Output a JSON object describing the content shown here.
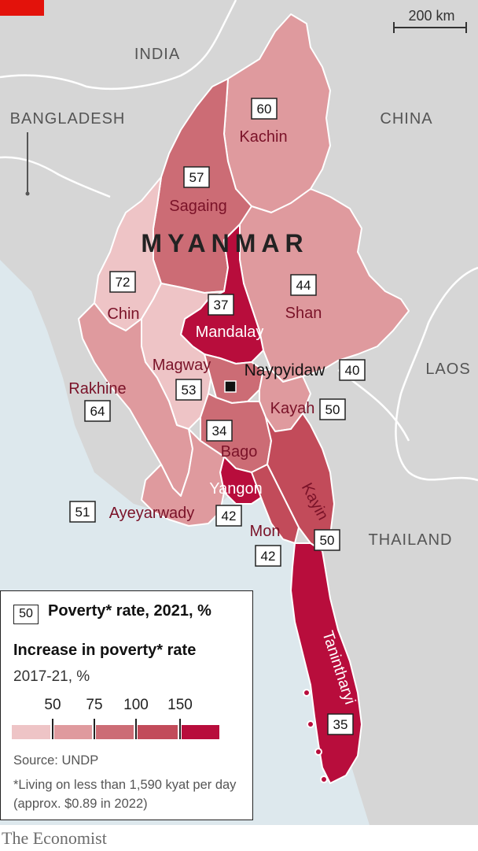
{
  "colors": {
    "sea": "#dde8ed",
    "land": "#d6d6d6",
    "border": "#ffffff",
    "bin1": "#eec4c6",
    "bin2": "#df9a9e",
    "bin3": "#cc6c75",
    "bin4": "#c24b5a",
    "bin5": "#b80d3c",
    "region_label": "#7a1228",
    "country_label": "#555555"
  },
  "scale_label": "200 km",
  "countries": {
    "india": "INDIA",
    "bangladesh": "BANGLADESH",
    "china": "CHINA",
    "laos": "LAOS",
    "thailand": "THAILAND"
  },
  "title": "MYANMAR",
  "capital": "Naypyidaw",
  "regions": [
    {
      "name": "Kachin",
      "poverty_rate": "60",
      "increase_bin": 2
    },
    {
      "name": "Sagaing",
      "poverty_rate": "57",
      "increase_bin": 3
    },
    {
      "name": "Chin",
      "poverty_rate": "72",
      "increase_bin": 1
    },
    {
      "name": "Shan",
      "poverty_rate": "44",
      "increase_bin": 2
    },
    {
      "name": "Mandalay",
      "poverty_rate": "37",
      "increase_bin": 5
    },
    {
      "name": "Magway",
      "poverty_rate": "53",
      "increase_bin": 1
    },
    {
      "name": "Rakhine",
      "poverty_rate": "64",
      "increase_bin": 2
    },
    {
      "name": "Naypyidaw",
      "poverty_rate": "40",
      "increase_bin": 3
    },
    {
      "name": "Kayah",
      "poverty_rate": "50",
      "increase_bin": 2
    },
    {
      "name": "Bago",
      "poverty_rate": "34",
      "increase_bin": 3
    },
    {
      "name": "Yangon",
      "poverty_rate": "42",
      "increase_bin": 5
    },
    {
      "name": "Ayeyarwady",
      "poverty_rate": "51",
      "increase_bin": 2
    },
    {
      "name": "Kayin",
      "poverty_rate": "50",
      "increase_bin": 4
    },
    {
      "name": "Mon",
      "poverty_rate": "42",
      "increase_bin": 4
    },
    {
      "name": "Tanintharyi",
      "poverty_rate": "35",
      "increase_bin": 5
    }
  ],
  "legend": {
    "key_value": "50",
    "title1": "Poverty* rate, 2021, %",
    "title2": "Increase in poverty* rate",
    "subtitle": "2017-21, %",
    "ticks": [
      "50",
      "75",
      "100",
      "150"
    ],
    "source": "Source: UNDP",
    "note": "*Living on less than 1,590 kyat per day (approx. $0.89 in 2022)"
  },
  "credit": "The Economist"
}
